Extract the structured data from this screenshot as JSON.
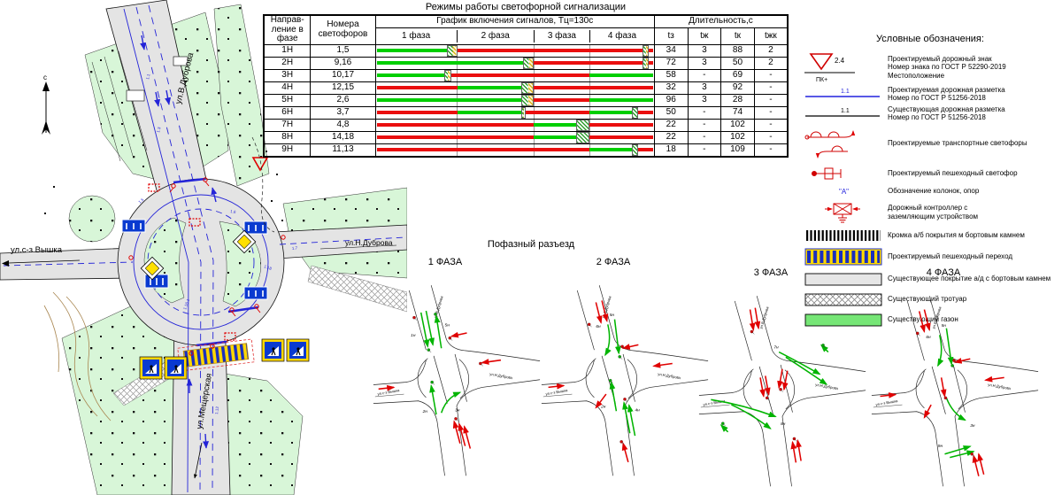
{
  "map": {
    "north_label": "с",
    "streets": {
      "top": "ул.В.Дуброва",
      "right": "ул.Н.Дуброва",
      "left": "ул.с-з Вышка",
      "bottom": "ул.Мещерская"
    },
    "marking_labels": [
      "1.1",
      "1.3",
      "1.5",
      "1.6",
      "1.7",
      "1.16.1",
      "1.12",
      "1.18"
    ]
  },
  "signal_table": {
    "title": "Режимы работы светофорной сигнализации",
    "header": {
      "direction": "Направ- ление в фазе",
      "numbers": "Номера светофоров",
      "schedule": "График включения сигналов, Тц=130с",
      "phases": [
        "1 фаза",
        "2 фаза",
        "3 фаза",
        "4 фаза"
      ],
      "duration": "Длительность,с",
      "duration_cols": [
        "tз",
        "tж",
        "tк",
        "tжк"
      ]
    },
    "cycle_s": 130,
    "rows": [
      {
        "dir": "1Н",
        "signals": "1,5",
        "durations": [
          "34",
          "3",
          "88",
          "2"
        ],
        "segments": [
          [
            "g",
            33
          ],
          [
            "h",
            5
          ],
          [
            "r",
            87
          ],
          [
            "h",
            3
          ],
          [
            "r",
            2
          ]
        ]
      },
      {
        "dir": "2Н",
        "signals": "9,16",
        "durations": [
          "72",
          "3",
          "50",
          "2"
        ],
        "segments": [
          [
            "g",
            69
          ],
          [
            "h",
            5
          ],
          [
            "r",
            51
          ],
          [
            "h",
            3
          ],
          [
            "r",
            2
          ]
        ]
      },
      {
        "dir": "3Н",
        "signals": "10,17",
        "durations": [
          "58",
          "-",
          "69",
          "-"
        ],
        "segments": [
          [
            "g",
            32
          ],
          [
            "h",
            3
          ],
          [
            "r",
            65
          ],
          [
            "g",
            30
          ]
        ]
      },
      {
        "dir": "4Н",
        "signals": "12,15",
        "durations": [
          "32",
          "3",
          "92",
          "-"
        ],
        "segments": [
          [
            "r",
            38
          ],
          [
            "g",
            30
          ],
          [
            "h",
            6
          ],
          [
            "r",
            56
          ]
        ]
      },
      {
        "dir": "5Н",
        "signals": "2,6",
        "durations": [
          "96",
          "3",
          "28",
          "-"
        ],
        "segments": [
          [
            "g",
            68
          ],
          [
            "h",
            6
          ],
          [
            "r",
            26
          ],
          [
            "g",
            30
          ]
        ]
      },
      {
        "dir": "6Н",
        "signals": "3,7",
        "durations": [
          "50",
          "-",
          "74",
          "-"
        ],
        "segments": [
          [
            "r",
            38
          ],
          [
            "g",
            30
          ],
          [
            "h",
            2
          ],
          [
            "r",
            30
          ],
          [
            "g",
            20
          ],
          [
            "gh",
            3
          ],
          [
            "r",
            7
          ]
        ]
      },
      {
        "dir": "7Н",
        "signals": "4,8",
        "durations": [
          "22",
          "-",
          "102",
          "-"
        ],
        "segments": [
          [
            "r",
            74
          ],
          [
            "g",
            20
          ],
          [
            "gh",
            6
          ],
          [
            "r",
            30
          ]
        ]
      },
      {
        "dir": "8Н",
        "signals": "14,18",
        "durations": [
          "22",
          "-",
          "102",
          "-"
        ],
        "segments": [
          [
            "r",
            74
          ],
          [
            "g",
            20
          ],
          [
            "gh",
            6
          ],
          [
            "r",
            30
          ]
        ]
      },
      {
        "dir": "9Н",
        "signals": "11,13",
        "durations": [
          "18",
          "-",
          "109",
          "-"
        ],
        "segments": [
          [
            "r",
            100
          ],
          [
            "g",
            20
          ],
          [
            "gh",
            3
          ],
          [
            "r",
            7
          ]
        ]
      }
    ]
  },
  "legend": {
    "title": "Условные обозначения:",
    "items": [
      {
        "sym": "sign",
        "tag": "2.4",
        "tag2": "ПК+",
        "text": "Проектируемый дорожный знак\nНомер знака по ГОСТ Р 52290-2019\nМестоположение"
      },
      {
        "sym": "marking-new",
        "tag": "1.1",
        "text": "Проектируемая дорожная разметка\nНомер по ГОСТ Р 51256-2018"
      },
      {
        "sym": "marking-exist",
        "tag": "1.1",
        "text": "Существующая дорожная разметка\nНомер по ГОСТ Р 51256-2018"
      },
      {
        "sym": "traffic-light",
        "text": "Проектируемые транспортные светофоры"
      },
      {
        "sym": "ped-light",
        "text": "Проектируемый пешеходный светофор"
      },
      {
        "sym": "columns",
        "tag": "\"А\"",
        "text": "Обозначение колонок, опор"
      },
      {
        "sym": "controller",
        "text": "Дорожный контроллер с\nзаземляющим устройством"
      },
      {
        "sym": "curb",
        "text": "Кромка а/б покрытия м бортовым камнем"
      },
      {
        "sym": "ped-crossing",
        "text": "Проектируемый пешеходный переход"
      },
      {
        "sym": "pavement",
        "text": "Существующее покрытие а/д с бортовым камнем"
      },
      {
        "sym": "sidewalk",
        "text": "Существующий тротуар"
      },
      {
        "sym": "lawn",
        "text": "Существующий газон"
      }
    ]
  },
  "phases": {
    "title": "Пофазный разъезд",
    "streets": {
      "top": "ул.В.Дуброва",
      "right": "ул.Н.Дуброва",
      "left": "ул.с-з Вышка"
    },
    "items": [
      {
        "label": "1 ФАЗА",
        "arrows": [
          [
            "g",
            58,
            52,
            66,
            92,
            null,
            null,
            "1н",
            46,
            80
          ],
          [
            "g",
            64,
            50,
            72,
            90,
            null,
            null,
            null,
            null,
            null
          ],
          [
            "g",
            82,
            94,
            76,
            56,
            null,
            null,
            "5н",
            86,
            68
          ],
          [
            "g",
            76,
            172,
            70,
            138,
            null,
            null,
            "2н",
            60,
            170
          ],
          [
            "g",
            82,
            170,
            104,
            146,
            88,
            152,
            "3н",
            98,
            168
          ],
          [
            "r",
            112,
            76,
            94,
            80
          ],
          [
            "r",
            152,
            108,
            130,
            111
          ],
          [
            "r",
            8,
            142,
            26,
            140
          ],
          [
            "r",
            104,
            206,
            97,
            180
          ],
          [
            "r",
            110,
            209,
            103,
            183
          ],
          [
            "r",
            116,
            212,
            109,
            186
          ]
        ],
        "lights": [
          [
            "g",
            67,
            96
          ],
          [
            "g",
            75,
            54
          ],
          [
            "g",
            71,
            134
          ],
          [
            "r",
            92,
            82
          ],
          [
            "r",
            128,
            112
          ],
          [
            "r",
            50,
            58
          ],
          [
            "r",
            99,
            177
          ]
        ]
      },
      {
        "label": "2 ФАЗА",
        "arrows": [
          [
            "g",
            88,
            60,
            93,
            100,
            null,
            null,
            "5н",
            82,
            56
          ],
          [
            "g",
            80,
            66,
            77,
            102,
            85,
            88,
            "6н",
            66,
            70
          ],
          [
            "g",
            90,
            168,
            84,
            134,
            null,
            null,
            "2н",
            72,
            164
          ],
          [
            "g",
            106,
            194,
            99,
            158,
            null,
            null,
            "4н",
            112,
            168
          ],
          [
            "g",
            112,
            197,
            105,
            161,
            null,
            null,
            null,
            null,
            null
          ],
          [
            "r",
            66,
            40,
            72,
            64
          ],
          [
            "r",
            73,
            38,
            79,
            62
          ],
          [
            "r",
            116,
            90,
            98,
            94
          ],
          [
            "r",
            156,
            112,
            134,
            115
          ],
          [
            "r",
            10,
            140,
            28,
            138
          ],
          [
            "r",
            78,
            148,
            66,
            164
          ],
          [
            "r",
            104,
            228,
            98,
            206
          ]
        ],
        "lights": [
          [
            "g",
            94,
            104
          ],
          [
            "g",
            83,
            132
          ],
          [
            "r",
            58,
            66
          ],
          [
            "r",
            97,
            92
          ],
          [
            "r",
            100,
            154
          ],
          [
            "r",
            96,
            204
          ]
        ]
      },
      {
        "label": "3 ФАЗА",
        "arrows": [
          [
            "g",
            96,
            86,
            144,
            112,
            116,
            96,
            "7н",
            90,
            82
          ],
          [
            "g",
            104,
            92,
            152,
            124,
            126,
            106,
            null,
            null,
            null
          ],
          [
            "g",
            16,
            142,
            92,
            162,
            54,
            148,
            "8н",
            98,
            172
          ],
          [
            "g",
            40,
            148,
            86,
            176,
            62,
            158,
            null,
            null,
            null
          ],
          [
            "g",
            154,
            86,
            146,
            78,
            null,
            null,
            null,
            null,
            null
          ],
          [
            "g",
            36,
            180,
            28,
            172,
            null,
            null,
            null,
            null,
            null
          ],
          [
            "r",
            62,
            36,
            66,
            60
          ],
          [
            "r",
            68,
            34,
            72,
            58
          ],
          [
            "r",
            100,
            106,
            96,
            128
          ],
          [
            "r",
            106,
            108,
            102,
            130
          ],
          [
            "r",
            74,
            116,
            78,
            138
          ],
          [
            "r",
            80,
            114,
            84,
            136
          ],
          [
            "r",
            116,
            216,
            112,
            192
          ],
          [
            "r",
            122,
            214,
            118,
            190
          ]
        ],
        "lights": [
          [
            "r",
            64,
            62
          ],
          [
            "r",
            98,
            130
          ],
          [
            "r",
            82,
            140
          ],
          [
            "g",
            148,
            78
          ],
          [
            "g",
            30,
            170
          ],
          [
            "r",
            114,
            188
          ]
        ]
      },
      {
        "label": "4 ФАЗА",
        "arrows": [
          [
            "g",
            90,
            58,
            96,
            100,
            null,
            null,
            "5н",
            84,
            56
          ],
          [
            "g",
            82,
            66,
            80,
            102,
            87,
            88,
            "6н",
            66,
            70
          ],
          [
            "g",
            90,
            140,
            112,
            166,
            97,
            158,
            "3н",
            118,
            174
          ],
          [
            "g",
            88,
            206,
            118,
            197,
            null,
            null,
            "9н",
            80,
            198
          ],
          [
            "g",
            94,
            210,
            122,
            203,
            null,
            null,
            null,
            null,
            null
          ],
          [
            "r",
            58,
            38,
            64,
            62
          ],
          [
            "r",
            64,
            36,
            70,
            60
          ],
          [
            "r",
            118,
            94,
            100,
            98
          ],
          [
            "r",
            158,
            116,
            136,
            119
          ],
          [
            "r",
            12,
            138,
            30,
            136
          ],
          [
            "r",
            72,
            148,
            64,
            163
          ],
          [
            "r",
            84,
            116,
            88,
            138
          ],
          [
            "r",
            128,
            232,
            122,
            208
          ],
          [
            "r",
            134,
            230,
            128,
            206
          ]
        ],
        "lights": [
          [
            "g",
            97,
            102
          ],
          [
            "r",
            56,
            64
          ],
          [
            "r",
            99,
            96
          ],
          [
            "r",
            89,
            140
          ],
          [
            "r",
            120,
            206
          ]
        ]
      }
    ]
  }
}
